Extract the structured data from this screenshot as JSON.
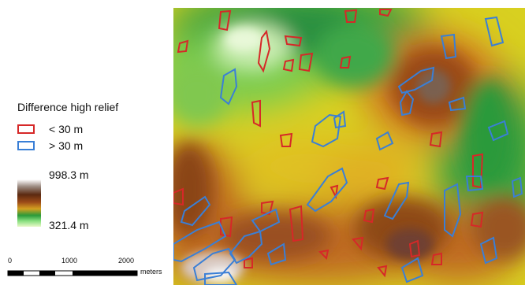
{
  "legend": {
    "title": "Difference high relief",
    "items": [
      {
        "label": "< 30 m",
        "color": "#d62828"
      },
      {
        "label": "> 30 m",
        "color": "#3a7fd6"
      }
    ],
    "elevation_max": "998.3 m",
    "elevation_min": "321.4 m",
    "ramp_colors": [
      "#ffffff",
      "#9a8a80",
      "#5b2a10",
      "#9c4a18",
      "#d4a020",
      "#2a9a3a",
      "#8ae080",
      "#e8f8c8"
    ]
  },
  "scalebar": {
    "ticks": [
      "0",
      "1000",
      "2000"
    ],
    "unit": "meters"
  },
  "map": {
    "colors": {
      "low_relief_outline": "#d62828",
      "high_relief_outline": "#3a7fd6"
    }
  }
}
